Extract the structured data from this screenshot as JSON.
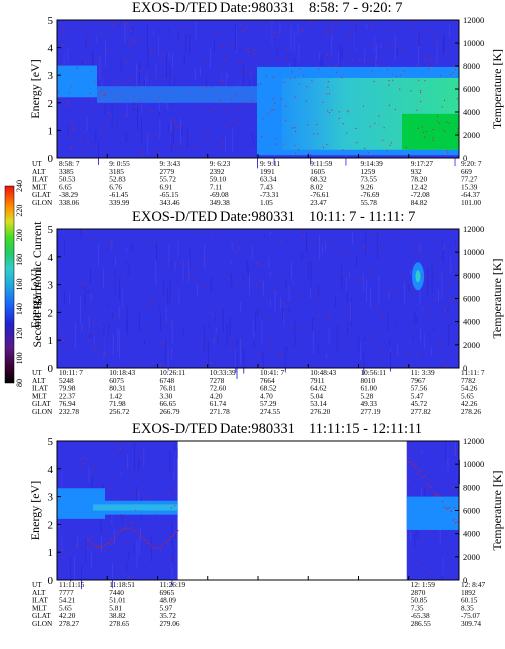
{
  "figure": {
    "colorbar": {
      "label": "Second Harmonic Current",
      "ticks": [
        "80",
        "100",
        "120",
        "140",
        "160",
        "180",
        "200",
        "220",
        "240"
      ]
    },
    "colors": {
      "background": "#3333e6",
      "band": "#1a8cff",
      "cyan": "#33cccc",
      "green": "#00cc44",
      "noise": "#cc2222"
    }
  },
  "chart_data": [
    {
      "type": "heatmap",
      "title": "EXOS-D/TED",
      "date": "Date:980331",
      "time_range": "8:58: 7 - 9:20: 7",
      "ylabel": "Energy [eV]",
      "ylim": [
        0,
        5
      ],
      "y_ticks": [
        "0",
        "1",
        "2",
        "3",
        "4",
        "5"
      ],
      "y2label": "Temperature [K]",
      "y2lim": [
        0,
        12000
      ],
      "y2_ticks": [
        "0",
        "2000",
        "4000",
        "6000",
        "8000",
        "10000",
        "12000"
      ],
      "data_coverage": [
        [
          0,
          1
        ]
      ],
      "ephemeris_labels": [
        "UT",
        "ALT",
        "ILAT",
        "MLT",
        "GLAT",
        "GLON"
      ],
      "ephemeris": [
        [
          "8:58: 7",
          "3385",
          "50.53",
          "6.65",
          "-38.29",
          "338.06"
        ],
        [
          "9: 0:55",
          "3185",
          "52.83",
          "6.76",
          "-61.45",
          "339.99"
        ],
        [
          "9: 3:43",
          "2779",
          "55.72",
          "6.91",
          "-65.15",
          "343.46"
        ],
        [
          "9: 6:23",
          "2392",
          "59.10",
          "7.11",
          "-69.08",
          "349.38"
        ],
        [
          "9: 9:11",
          "1991",
          "63.34",
          "7.43",
          "-73.31",
          "1.05"
        ],
        [
          "9:11:59",
          "1605",
          "68.32",
          "8.02",
          "-76.61",
          "23.47"
        ],
        [
          "9:14:39",
          "1259",
          "73.55",
          "9.26",
          "-76.69",
          "55.78"
        ],
        [
          "9:17:27",
          "932",
          "78.20",
          "12.42",
          "-72.08",
          "84.82"
        ],
        [
          "9:20: 7",
          "669",
          "77.27",
          "15.39",
          "-64.37",
          "101.00"
        ]
      ]
    },
    {
      "type": "heatmap",
      "title": "EXOS-D/TED",
      "date": "Date:980331",
      "time_range": "10:11: 7 - 11:11: 7",
      "ylabel": "Energy [eV]",
      "ylim": [
        0,
        5
      ],
      "y_ticks": [
        "0",
        "1",
        "2",
        "3",
        "4",
        "5"
      ],
      "y2label": "Temperature [K]",
      "y2lim": [
        0,
        12000
      ],
      "y2_ticks": [
        "0",
        "2000",
        "4000",
        "6000",
        "8000",
        "10000",
        "12000"
      ],
      "data_coverage": [
        [
          0,
          1
        ]
      ],
      "ephemeris_labels": [
        "UT",
        "ALT",
        "ILAT",
        "MLT",
        "GLAT",
        "GLON"
      ],
      "ephemeris": [
        [
          "10:11: 7",
          "5248",
          "79.98",
          "22.37",
          "76.94",
          "232.78"
        ],
        [
          "10:18:43",
          "6075",
          "80.31",
          "1.42",
          "71.98",
          "256.72"
        ],
        [
          "10:26:11",
          "6748",
          "76.81",
          "3.30",
          "66.65",
          "266.79"
        ],
        [
          "10:33:39",
          "7278",
          "72.60",
          "4.20",
          "61.74",
          "271.78"
        ],
        [
          "10:41: 7",
          "7664",
          "68.52",
          "4.70",
          "57.29",
          "274.55"
        ],
        [
          "10:48:43",
          "7911",
          "64.62",
          "5.04",
          "53.14",
          "276.20"
        ],
        [
          "10:56:11",
          "8010",
          "61.00",
          "5.28",
          "49.33",
          "277.19"
        ],
        [
          "11: 3:39",
          "7967",
          "57.56",
          "5.47",
          "45.72",
          "277.82"
        ],
        [
          "11:11: 7",
          "7782",
          "54.26",
          "5.65",
          "42.26",
          "278.26"
        ]
      ]
    },
    {
      "type": "heatmap",
      "title": "EXOS-D/TED",
      "date": "Date:980331",
      "time_range": "11:11:15 - 12:11:11",
      "ylabel": "Energy [eV]",
      "ylim": [
        0,
        5
      ],
      "y_ticks": [
        "0",
        "1",
        "2",
        "3",
        "4",
        "5"
      ],
      "y2label": "Temperature [K]",
      "y2lim": [
        0,
        12000
      ],
      "y2_ticks": [
        "0",
        "2000",
        "4000",
        "6000",
        "8000",
        "10000",
        "12000"
      ],
      "data_coverage": [
        [
          0,
          0.3
        ],
        [
          0.87,
          1
        ]
      ],
      "ephemeris_labels": [
        "UT",
        "ALT",
        "ILAT",
        "MLT",
        "GLAT",
        "GLON"
      ],
      "ephemeris": [
        [
          "11:11:15",
          "7777",
          "54.21",
          "5.65",
          "42.20",
          "278.27"
        ],
        [
          "11:18:51",
          "7440",
          "51.01",
          "5.81",
          "38.82",
          "278.65"
        ],
        [
          "11:26:19",
          "6965",
          "48.09",
          "5.97",
          "35.72",
          "279.06"
        ],
        [
          "",
          "",
          "",
          "",
          "",
          ""
        ],
        [
          "",
          "",
          "",
          "",
          "",
          ""
        ],
        [
          "",
          "",
          "",
          "",
          "",
          ""
        ],
        [
          "",
          "",
          "",
          "",
          "",
          ""
        ],
        [
          "12: 1:59",
          "2870",
          "50.85",
          "7.35",
          "-65.38",
          "286.55"
        ],
        [
          "12: 8:47",
          "1892",
          "60.15",
          "8.35",
          "-75.07",
          "309.74"
        ]
      ]
    }
  ]
}
